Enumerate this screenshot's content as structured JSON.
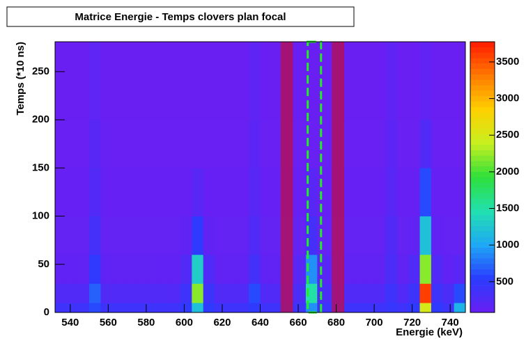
{
  "chart_data": {
    "type": "heatmap",
    "title": "Matrice Energie - Temps clovers plan focal",
    "x_label": "Energie (keV)",
    "y_label": "Temps (*10 ns)",
    "xbins": [
      532,
      538,
      544,
      550,
      556,
      562,
      568,
      574,
      580,
      586,
      592,
      598,
      604,
      610,
      616,
      622,
      628,
      634,
      640,
      646,
      652,
      658,
      664,
      670,
      676,
      682,
      688,
      694,
      700,
      706,
      712,
      718,
      724,
      730,
      736,
      742,
      748
    ],
    "ybins": [
      0,
      10,
      30,
      60,
      100,
      150,
      200,
      281
    ],
    "z": [
      [
        400,
        400,
        400,
        600,
        400,
        400,
        400,
        400,
        400,
        400,
        400,
        500,
        1200,
        500,
        400,
        400,
        400,
        500,
        400,
        400,
        400,
        400,
        900,
        400,
        400,
        400,
        400,
        400,
        400,
        450,
        400,
        500,
        2500,
        500,
        400,
        1100
      ],
      [
        250,
        250,
        250,
        700,
        250,
        250,
        250,
        250,
        250,
        250,
        250,
        400,
        2200,
        400,
        250,
        250,
        250,
        600,
        250,
        250,
        250,
        300,
        1500,
        300,
        250,
        250,
        250,
        250,
        250,
        400,
        250,
        400,
        3600,
        400,
        300,
        600
      ],
      [
        150,
        150,
        150,
        500,
        150,
        150,
        150,
        150,
        150,
        150,
        150,
        250,
        1300,
        250,
        150,
        150,
        150,
        350,
        150,
        150,
        150,
        200,
        900,
        200,
        150,
        150,
        150,
        150,
        150,
        300,
        150,
        250,
        2200,
        250,
        150,
        200
      ],
      [
        120,
        120,
        120,
        350,
        120,
        120,
        120,
        120,
        120,
        120,
        120,
        150,
        500,
        150,
        120,
        120,
        120,
        250,
        120,
        120,
        120,
        120,
        350,
        120,
        120,
        120,
        120,
        120,
        120,
        250,
        120,
        150,
        1200,
        150,
        120,
        120
      ],
      [
        100,
        100,
        100,
        250,
        100,
        100,
        100,
        100,
        100,
        100,
        100,
        100,
        200,
        100,
        100,
        100,
        100,
        200,
        100,
        100,
        100,
        100,
        200,
        100,
        100,
        100,
        100,
        100,
        100,
        200,
        100,
        100,
        600,
        100,
        100,
        100
      ],
      [
        90,
        90,
        90,
        200,
        90,
        90,
        90,
        90,
        90,
        90,
        90,
        90,
        90,
        90,
        90,
        90,
        90,
        180,
        90,
        90,
        90,
        90,
        90,
        90,
        90,
        90,
        90,
        90,
        90,
        180,
        90,
        90,
        250,
        90,
        90,
        90
      ],
      [
        85,
        85,
        85,
        170,
        85,
        85,
        85,
        85,
        85,
        85,
        85,
        85,
        85,
        85,
        85,
        85,
        85,
        160,
        85,
        85,
        85,
        85,
        85,
        85,
        85,
        85,
        85,
        85,
        85,
        160,
        85,
        85,
        150,
        85,
        85,
        85
      ]
    ],
    "xlim": [
      532,
      748
    ],
    "ylim": [
      0,
      281
    ],
    "zlim": [
      80,
      3775
    ],
    "xticks": [
      540,
      560,
      580,
      600,
      620,
      640,
      660,
      680,
      700,
      720,
      740
    ],
    "yticks": [
      0,
      50,
      100,
      150,
      200,
      250
    ],
    "zticks": [
      500,
      1000,
      1500,
      2000,
      2500,
      3000,
      3500
    ],
    "palette": [
      "#6a1ff2",
      "#2a3cff",
      "#1ea8f5",
      "#22e0b0",
      "#2ee03a",
      "#c8f020",
      "#ffd000",
      "#ff7a00",
      "#ff1a00"
    ],
    "regions": [
      {
        "x": [
          651,
          657
        ],
        "color": "#b01060"
      },
      {
        "x": [
          678,
          684
        ],
        "color": "#b01060"
      },
      {
        "x": [
          665,
          672
        ],
        "color": "#22ee22",
        "style": "dashed"
      }
    ]
  }
}
